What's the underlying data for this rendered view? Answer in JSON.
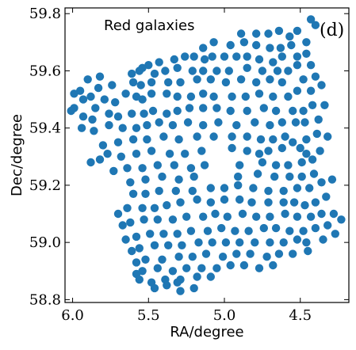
{
  "chart_data": {
    "type": "scatter",
    "title": "",
    "xlabel": "RA/degree",
    "ylabel": "Dec/degree",
    "annotation": "Red galaxies",
    "panel_label": "(d)",
    "xlim": [
      6.05,
      4.18
    ],
    "ylim": [
      58.79,
      59.82
    ],
    "x_reversed": true,
    "xticks": [
      6.0,
      5.5,
      5.0,
      4.5
    ],
    "xtick_labels": [
      "6.0",
      "5.5",
      "5.0",
      "4.5"
    ],
    "yticks": [
      58.8,
      59.0,
      59.2,
      59.4,
      59.6,
      59.8
    ],
    "ytick_labels": [
      "58.8",
      "59.0",
      "59.2",
      "59.4",
      "59.6",
      "59.8"
    ],
    "grid": false,
    "marker_color": "#1f77b4",
    "points": [
      [
        4.43,
        59.78
      ],
      [
        4.4,
        59.76
      ],
      [
        4.52,
        59.74
      ],
      [
        4.57,
        59.72
      ],
      [
        4.64,
        59.74
      ],
      [
        4.71,
        59.73
      ],
      [
        4.79,
        59.73
      ],
      [
        4.89,
        59.73
      ],
      [
        4.46,
        59.7
      ],
      [
        4.56,
        59.69
      ],
      [
        4.63,
        59.68
      ],
      [
        4.7,
        59.68
      ],
      [
        4.79,
        59.69
      ],
      [
        4.87,
        59.7
      ],
      [
        4.96,
        59.69
      ],
      [
        5.07,
        59.7
      ],
      [
        5.14,
        59.68
      ],
      [
        4.46,
        59.66
      ],
      [
        4.52,
        59.65
      ],
      [
        4.62,
        59.65
      ],
      [
        4.68,
        59.63
      ],
      [
        4.77,
        59.64
      ],
      [
        4.85,
        59.65
      ],
      [
        4.92,
        59.65
      ],
      [
        5.0,
        59.65
      ],
      [
        5.08,
        59.65
      ],
      [
        5.13,
        59.64
      ],
      [
        5.2,
        59.65
      ],
      [
        5.26,
        59.65
      ],
      [
        5.33,
        59.64
      ],
      [
        5.43,
        59.63
      ],
      [
        5.5,
        59.62
      ],
      [
        5.54,
        59.61
      ],
      [
        4.43,
        59.62
      ],
      [
        4.52,
        59.62
      ],
      [
        4.58,
        59.6
      ],
      [
        4.65,
        59.6
      ],
      [
        4.75,
        59.6
      ],
      [
        4.85,
        59.61
      ],
      [
        4.97,
        59.6
      ],
      [
        5.05,
        59.6
      ],
      [
        5.14,
        59.6
      ],
      [
        5.21,
        59.6
      ],
      [
        5.31,
        59.61
      ],
      [
        5.39,
        59.6
      ],
      [
        5.46,
        59.59
      ],
      [
        5.56,
        59.6
      ],
      [
        5.61,
        59.59
      ],
      [
        5.82,
        59.58
      ],
      [
        5.9,
        59.57
      ],
      [
        4.4,
        59.58
      ],
      [
        4.48,
        59.57
      ],
      [
        4.62,
        59.56
      ],
      [
        4.7,
        59.57
      ],
      [
        4.79,
        59.56
      ],
      [
        4.89,
        59.57
      ],
      [
        4.99,
        59.56
      ],
      [
        5.09,
        59.57
      ],
      [
        5.18,
        59.57
      ],
      [
        5.29,
        59.56
      ],
      [
        5.37,
        59.56
      ],
      [
        5.48,
        59.56
      ],
      [
        5.55,
        59.55
      ],
      [
        5.6,
        59.56
      ],
      [
        5.74,
        59.55
      ],
      [
        5.83,
        59.54
      ],
      [
        5.95,
        59.53
      ],
      [
        5.99,
        59.52
      ],
      [
        5.88,
        59.51
      ],
      [
        5.93,
        59.5
      ],
      [
        4.36,
        59.55
      ],
      [
        4.43,
        59.53
      ],
      [
        4.52,
        59.53
      ],
      [
        4.58,
        59.51
      ],
      [
        4.68,
        59.51
      ],
      [
        4.77,
        59.52
      ],
      [
        4.86,
        59.51
      ],
      [
        4.95,
        59.51
      ],
      [
        5.07,
        59.51
      ],
      [
        5.14,
        59.52
      ],
      [
        5.22,
        59.51
      ],
      [
        5.31,
        59.51
      ],
      [
        5.38,
        59.52
      ],
      [
        5.48,
        59.52
      ],
      [
        5.54,
        59.5
      ],
      [
        5.58,
        59.51
      ],
      [
        5.65,
        59.52
      ],
      [
        5.72,
        59.49
      ],
      [
        5.79,
        59.5
      ],
      [
        5.85,
        59.47
      ],
      [
        5.99,
        59.47
      ],
      [
        6.01,
        59.46
      ],
      [
        4.34,
        59.48
      ],
      [
        4.42,
        59.48
      ],
      [
        4.48,
        59.46
      ],
      [
        4.55,
        59.46
      ],
      [
        4.66,
        59.46
      ],
      [
        4.74,
        59.47
      ],
      [
        4.85,
        59.46
      ],
      [
        4.96,
        59.46
      ],
      [
        5.05,
        59.47
      ],
      [
        5.14,
        59.47
      ],
      [
        5.23,
        59.47
      ],
      [
        5.31,
        59.46
      ],
      [
        5.38,
        59.45
      ],
      [
        5.47,
        59.46
      ],
      [
        5.53,
        59.45
      ],
      [
        5.61,
        59.45
      ],
      [
        5.7,
        59.44
      ],
      [
        5.76,
        59.45
      ],
      [
        5.87,
        59.43
      ],
      [
        5.93,
        59.44
      ],
      [
        4.38,
        59.43
      ],
      [
        4.47,
        59.42
      ],
      [
        4.53,
        59.42
      ],
      [
        4.62,
        59.42
      ],
      [
        4.7,
        59.41
      ],
      [
        4.8,
        59.42
      ],
      [
        4.92,
        59.41
      ],
      [
        5.04,
        59.42
      ],
      [
        5.14,
        59.41
      ],
      [
        5.24,
        59.42
      ],
      [
        5.34,
        59.41
      ],
      [
        5.43,
        59.42
      ],
      [
        5.51,
        59.41
      ],
      [
        5.58,
        59.4
      ],
      [
        5.67,
        59.4
      ],
      [
        5.76,
        59.41
      ],
      [
        5.86,
        59.39
      ],
      [
        5.94,
        59.4
      ],
      [
        4.32,
        59.37
      ],
      [
        4.39,
        59.38
      ],
      [
        4.46,
        59.36
      ],
      [
        4.55,
        59.35
      ],
      [
        4.6,
        59.37
      ],
      [
        4.68,
        59.36
      ],
      [
        4.76,
        59.36
      ],
      [
        4.85,
        59.37
      ],
      [
        4.95,
        59.37
      ],
      [
        5.07,
        59.37
      ],
      [
        5.18,
        59.37
      ],
      [
        5.3,
        59.36
      ],
      [
        5.4,
        59.37
      ],
      [
        5.51,
        59.36
      ],
      [
        5.6,
        59.36
      ],
      [
        5.7,
        59.35
      ],
      [
        5.8,
        59.34
      ],
      [
        4.37,
        59.32
      ],
      [
        4.46,
        59.31
      ],
      [
        4.5,
        59.33
      ],
      [
        4.62,
        59.33
      ],
      [
        4.71,
        59.32
      ],
      [
        4.77,
        59.31
      ],
      [
        4.85,
        59.32
      ],
      [
        4.95,
        59.33
      ],
      [
        5.15,
        59.32
      ],
      [
        5.26,
        59.31
      ],
      [
        5.36,
        59.31
      ],
      [
        5.48,
        59.32
      ],
      [
        5.58,
        59.31
      ],
      [
        5.68,
        59.3
      ],
      [
        5.77,
        59.31
      ],
      [
        5.82,
        59.29
      ],
      [
        5.88,
        59.28
      ],
      [
        4.42,
        59.29
      ],
      [
        4.49,
        59.28
      ],
      [
        4.58,
        59.27
      ],
      [
        4.66,
        59.27
      ],
      [
        4.75,
        59.28
      ],
      [
        4.9,
        59.27
      ],
      [
        5.13,
        59.27
      ],
      [
        5.22,
        59.26
      ],
      [
        5.33,
        59.27
      ],
      [
        5.44,
        59.27
      ],
      [
        5.54,
        59.26
      ],
      [
        5.64,
        59.26
      ],
      [
        5.73,
        59.25
      ],
      [
        4.41,
        59.24
      ],
      [
        4.49,
        59.23
      ],
      [
        4.57,
        59.23
      ],
      [
        4.67,
        59.23
      ],
      [
        4.78,
        59.24
      ],
      [
        4.91,
        59.23
      ],
      [
        5.2,
        59.23
      ],
      [
        5.3,
        59.22
      ],
      [
        5.41,
        59.23
      ],
      [
        5.52,
        59.22
      ],
      [
        5.62,
        59.21
      ],
      [
        4.29,
        59.22
      ],
      [
        4.36,
        59.21
      ],
      [
        4.44,
        59.19
      ],
      [
        4.52,
        59.19
      ],
      [
        4.61,
        59.18
      ],
      [
        4.71,
        59.18
      ],
      [
        4.81,
        59.19
      ],
      [
        4.91,
        59.2
      ],
      [
        5.0,
        59.19
      ],
      [
        5.09,
        59.19
      ],
      [
        5.21,
        59.18
      ],
      [
        5.32,
        59.18
      ],
      [
        5.43,
        59.18
      ],
      [
        5.52,
        59.17
      ],
      [
        5.6,
        59.17
      ],
      [
        4.33,
        59.16
      ],
      [
        4.4,
        59.14
      ],
      [
        4.47,
        59.13
      ],
      [
        4.54,
        59.14
      ],
      [
        4.61,
        59.14
      ],
      [
        4.71,
        59.14
      ],
      [
        4.82,
        59.14
      ],
      [
        4.9,
        59.15
      ],
      [
        5.0,
        59.15
      ],
      [
        5.09,
        59.14
      ],
      [
        5.18,
        59.15
      ],
      [
        5.29,
        59.14
      ],
      [
        5.38,
        59.13
      ],
      [
        5.46,
        59.12
      ],
      [
        5.54,
        59.12
      ],
      [
        5.64,
        59.12
      ],
      [
        5.7,
        59.1
      ],
      [
        4.28,
        59.1
      ],
      [
        4.36,
        59.1
      ],
      [
        4.43,
        59.09
      ],
      [
        4.52,
        59.09
      ],
      [
        4.6,
        59.1
      ],
      [
        4.7,
        59.09
      ],
      [
        4.79,
        59.09
      ],
      [
        4.88,
        59.1
      ],
      [
        4.98,
        59.09
      ],
      [
        5.06,
        59.1
      ],
      [
        5.14,
        59.09
      ],
      [
        5.25,
        59.09
      ],
      [
        5.34,
        59.08
      ],
      [
        5.44,
        59.08
      ],
      [
        5.53,
        59.08
      ],
      [
        5.62,
        59.07
      ],
      [
        5.67,
        59.06
      ],
      [
        4.23,
        59.08
      ],
      [
        4.32,
        59.06
      ],
      [
        4.4,
        59.05
      ],
      [
        4.48,
        59.04
      ],
      [
        4.57,
        59.04
      ],
      [
        4.66,
        59.05
      ],
      [
        4.74,
        59.05
      ],
      [
        4.84,
        59.04
      ],
      [
        4.93,
        59.04
      ],
      [
        5.02,
        59.05
      ],
      [
        5.11,
        59.04
      ],
      [
        5.22,
        59.04
      ],
      [
        5.31,
        59.03
      ],
      [
        5.4,
        59.03
      ],
      [
        5.49,
        59.03
      ],
      [
        5.58,
        59.02
      ],
      [
        5.65,
        59.01
      ],
      [
        4.27,
        59.03
      ],
      [
        4.35,
        59.01
      ],
      [
        4.46,
        59.0
      ],
      [
        4.52,
        59.01
      ],
      [
        4.61,
        59.0
      ],
      [
        4.7,
        59.0
      ],
      [
        4.8,
        59.0
      ],
      [
        4.9,
        59.0
      ],
      [
        4.99,
        59.0
      ],
      [
        5.08,
        59.0
      ],
      [
        5.17,
        59.0
      ],
      [
        5.28,
        58.99
      ],
      [
        5.37,
        58.99
      ],
      [
        5.46,
        58.99
      ],
      [
        5.56,
        58.98
      ],
      [
        5.61,
        58.97
      ],
      [
        4.45,
        58.97
      ],
      [
        4.55,
        58.96
      ],
      [
        4.64,
        58.96
      ],
      [
        4.72,
        58.95
      ],
      [
        4.83,
        58.96
      ],
      [
        4.92,
        58.96
      ],
      [
        5.01,
        58.95
      ],
      [
        5.12,
        58.96
      ],
      [
        5.21,
        58.95
      ],
      [
        5.3,
        58.95
      ],
      [
        5.41,
        58.94
      ],
      [
        5.52,
        58.94
      ],
      [
        5.58,
        58.93
      ],
      [
        4.68,
        58.92
      ],
      [
        4.77,
        58.91
      ],
      [
        4.87,
        58.92
      ],
      [
        4.96,
        58.92
      ],
      [
        5.05,
        58.91
      ],
      [
        5.15,
        58.91
      ],
      [
        5.25,
        58.91
      ],
      [
        5.34,
        58.9
      ],
      [
        5.44,
        58.91
      ],
      [
        5.54,
        58.9
      ],
      [
        5.58,
        58.89
      ],
      [
        5.09,
        58.88
      ],
      [
        5.18,
        58.88
      ],
      [
        5.29,
        58.87
      ],
      [
        5.39,
        58.87
      ],
      [
        5.48,
        58.86
      ],
      [
        5.56,
        58.87
      ],
      [
        5.46,
        58.84
      ],
      [
        5.38,
        58.85
      ],
      [
        5.31,
        58.86
      ],
      [
        5.2,
        58.84
      ],
      [
        5.29,
        58.83
      ]
    ]
  }
}
